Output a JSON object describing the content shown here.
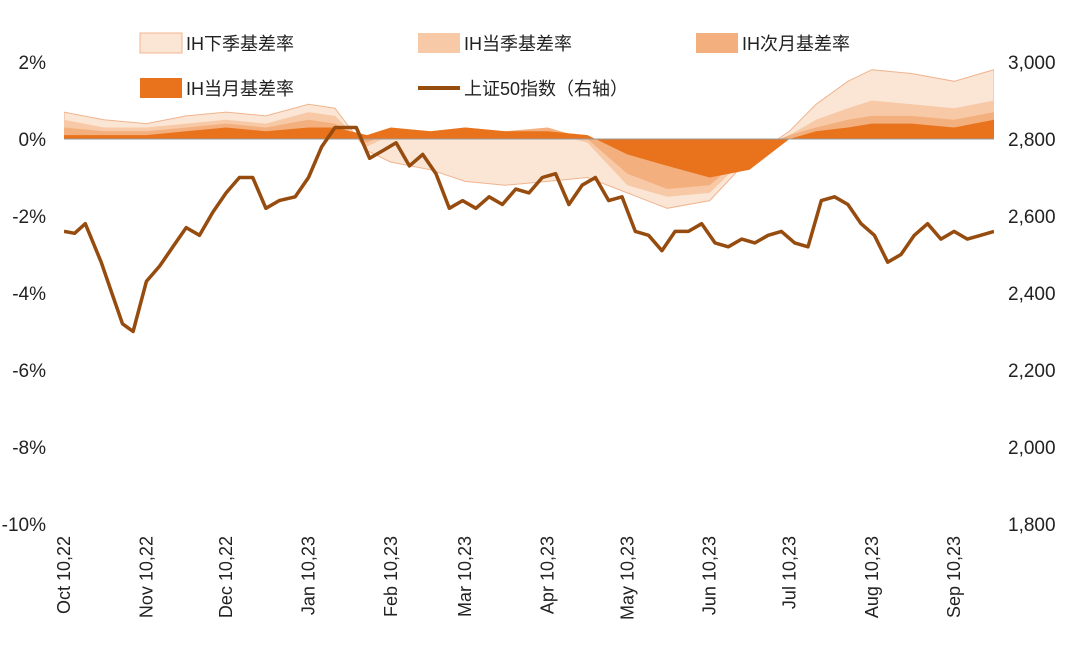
{
  "colors": {
    "ih_next_quarter": "#fbe6d6",
    "ih_next_quarter_edge": "#f0b48e",
    "ih_current_quarter": "#f8c9a6",
    "ih_next_month": "#f3b07e",
    "ih_current_month": "#e8731c",
    "sse50": "#964b0f"
  },
  "chart_data": {
    "type": "area",
    "x_ticks": [
      "Oct 10,22",
      "Nov 10,22",
      "Dec 10,22",
      "Jan 10,23",
      "Feb 10,23",
      "Mar 10,23",
      "Apr 10,23",
      "May 10,23",
      "Jun 10,23",
      "Jul 10,23",
      "Aug 10,23",
      "Sep 10,23"
    ],
    "y_left": {
      "ticks": [
        "2%",
        "0%",
        "-2%",
        "-4%",
        "-6%",
        "-8%",
        "-10%"
      ],
      "range": [
        -10,
        2
      ]
    },
    "y_right": {
      "ticks": [
        "3,000",
        "2,800",
        "2,600",
        "2,400",
        "2,200",
        "2,000",
        "1,800"
      ],
      "range": [
        1800,
        3000
      ]
    },
    "x_range": [
      "2022-10-10",
      "2023-09-25"
    ],
    "legend": [
      {
        "key": "ih_next_quarter",
        "label": "IH下季基差率"
      },
      {
        "key": "ih_current_quarter",
        "label": "IH当季基差率"
      },
      {
        "key": "ih_next_month",
        "label": "IH次月基差率"
      },
      {
        "key": "ih_current_month",
        "label": "IH当月基差率"
      },
      {
        "key": "sse50",
        "label": "上证50指数（右轴）"
      }
    ],
    "series": [
      {
        "key": "ih_next_quarter",
        "name": "IH下季基差率",
        "axis": "left",
        "x": [
          "2022-10-10",
          "2022-10-25",
          "2022-11-10",
          "2022-11-25",
          "2022-12-10",
          "2022-12-25",
          "2023-01-10",
          "2023-01-20",
          "2023-02-01",
          "2023-02-10",
          "2023-02-25",
          "2023-03-10",
          "2023-03-25",
          "2023-04-10",
          "2023-04-25",
          "2023-05-10",
          "2023-05-25",
          "2023-06-10",
          "2023-06-25",
          "2023-07-10",
          "2023-07-20",
          "2023-08-01",
          "2023-08-10",
          "2023-08-25",
          "2023-09-10",
          "2023-09-25"
        ],
        "values": [
          0.7,
          0.5,
          0.4,
          0.6,
          0.7,
          0.6,
          0.9,
          0.8,
          -0.3,
          -0.6,
          -0.8,
          -1.1,
          -1.2,
          -1.1,
          -1.0,
          -1.4,
          -1.8,
          -1.6,
          -0.5,
          0.2,
          0.9,
          1.5,
          1.8,
          1.7,
          1.5,
          1.8
        ]
      },
      {
        "key": "ih_current_quarter",
        "name": "IH当季基差率",
        "axis": "left",
        "x": [
          "2022-10-10",
          "2022-10-25",
          "2022-11-10",
          "2022-11-25",
          "2022-12-10",
          "2022-12-25",
          "2023-01-10",
          "2023-01-20",
          "2023-02-01",
          "2023-02-10",
          "2023-02-25",
          "2023-03-10",
          "2023-03-25",
          "2023-04-10",
          "2023-04-25",
          "2023-05-10",
          "2023-05-25",
          "2023-06-10",
          "2023-06-25",
          "2023-07-10",
          "2023-07-20",
          "2023-08-01",
          "2023-08-10",
          "2023-08-25",
          "2023-09-10",
          "2023-09-25"
        ],
        "values": [
          0.5,
          0.3,
          0.3,
          0.4,
          0.5,
          0.4,
          0.7,
          0.6,
          -0.2,
          0.1,
          0.1,
          0.2,
          0.1,
          0.2,
          -0.1,
          -1.2,
          -1.5,
          -1.4,
          -0.4,
          0.1,
          0.5,
          0.8,
          1.0,
          0.9,
          0.8,
          1.0
        ]
      },
      {
        "key": "ih_next_month",
        "name": "IH次月基差率",
        "axis": "left",
        "x": [
          "2022-10-10",
          "2022-10-25",
          "2022-11-10",
          "2022-11-25",
          "2022-12-10",
          "2022-12-25",
          "2023-01-10",
          "2023-01-20",
          "2023-02-01",
          "2023-02-10",
          "2023-02-25",
          "2023-03-10",
          "2023-03-25",
          "2023-04-10",
          "2023-04-25",
          "2023-05-10",
          "2023-05-25",
          "2023-06-10",
          "2023-06-25",
          "2023-07-10",
          "2023-07-20",
          "2023-08-01",
          "2023-08-10",
          "2023-08-25",
          "2023-09-10",
          "2023-09-25"
        ],
        "values": [
          0.3,
          0.2,
          0.2,
          0.3,
          0.4,
          0.3,
          0.5,
          0.4,
          -0.1,
          0.2,
          0.2,
          0.3,
          0.2,
          0.3,
          0.0,
          -0.9,
          -1.3,
          -1.2,
          -0.3,
          0.1,
          0.3,
          0.5,
          0.6,
          0.6,
          0.5,
          0.7
        ]
      },
      {
        "key": "ih_current_month",
        "name": "IH当月基差率",
        "axis": "left",
        "x": [
          "2022-10-10",
          "2022-10-25",
          "2022-11-10",
          "2022-11-25",
          "2022-12-10",
          "2022-12-25",
          "2023-01-10",
          "2023-01-20",
          "2023-02-01",
          "2023-02-10",
          "2023-02-25",
          "2023-03-10",
          "2023-03-25",
          "2023-04-10",
          "2023-04-25",
          "2023-05-10",
          "2023-05-25",
          "2023-06-10",
          "2023-06-25",
          "2023-07-10",
          "2023-07-20",
          "2023-08-01",
          "2023-08-10",
          "2023-08-25",
          "2023-09-10",
          "2023-09-25"
        ],
        "values": [
          0.1,
          0.1,
          0.1,
          0.2,
          0.3,
          0.2,
          0.3,
          0.3,
          0.1,
          0.3,
          0.2,
          0.3,
          0.2,
          0.2,
          0.1,
          -0.4,
          -0.7,
          -1.0,
          -0.8,
          0.0,
          0.2,
          0.3,
          0.4,
          0.4,
          0.3,
          0.5
        ]
      },
      {
        "key": "sse50",
        "name": "上证50指数（右轴）",
        "axis": "right",
        "x": [
          "2022-10-10",
          "2022-10-14",
          "2022-10-18",
          "2022-10-24",
          "2022-10-28",
          "2022-11-01",
          "2022-11-05",
          "2022-11-10",
          "2022-11-15",
          "2022-11-20",
          "2022-11-25",
          "2022-11-30",
          "2022-12-05",
          "2022-12-10",
          "2022-12-15",
          "2022-12-20",
          "2022-12-25",
          "2022-12-30",
          "2023-01-05",
          "2023-01-10",
          "2023-01-15",
          "2023-01-20",
          "2023-01-28",
          "2023-02-02",
          "2023-02-07",
          "2023-02-12",
          "2023-02-17",
          "2023-02-22",
          "2023-02-27",
          "2023-03-04",
          "2023-03-09",
          "2023-03-14",
          "2023-03-19",
          "2023-03-24",
          "2023-03-29",
          "2023-04-03",
          "2023-04-08",
          "2023-04-13",
          "2023-04-18",
          "2023-04-23",
          "2023-04-28",
          "2023-05-03",
          "2023-05-08",
          "2023-05-13",
          "2023-05-18",
          "2023-05-23",
          "2023-05-28",
          "2023-06-02",
          "2023-06-07",
          "2023-06-12",
          "2023-06-17",
          "2023-06-22",
          "2023-06-27",
          "2023-07-02",
          "2023-07-07",
          "2023-07-12",
          "2023-07-17",
          "2023-07-22",
          "2023-07-27",
          "2023-08-01",
          "2023-08-06",
          "2023-08-11",
          "2023-08-16",
          "2023-08-21",
          "2023-08-26",
          "2023-08-31",
          "2023-09-05",
          "2023-09-10",
          "2023-09-15",
          "2023-09-20",
          "2023-09-25"
        ],
        "values": [
          2560,
          2555,
          2580,
          2480,
          2400,
          2320,
          2300,
          2430,
          2470,
          2520,
          2570,
          2550,
          2610,
          2660,
          2700,
          2700,
          2620,
          2640,
          2650,
          2700,
          2780,
          2830,
          2830,
          2750,
          2770,
          2790,
          2730,
          2760,
          2710,
          2620,
          2640,
          2620,
          2650,
          2630,
          2670,
          2660,
          2700,
          2710,
          2630,
          2680,
          2700,
          2640,
          2650,
          2560,
          2550,
          2510,
          2560,
          2560,
          2580,
          2530,
          2520,
          2540,
          2530,
          2550,
          2560,
          2530,
          2520,
          2640,
          2650,
          2630,
          2580,
          2550,
          2480,
          2500,
          2550,
          2580,
          2540,
          2560,
          2540,
          2550,
          2560
        ]
      }
    ]
  }
}
